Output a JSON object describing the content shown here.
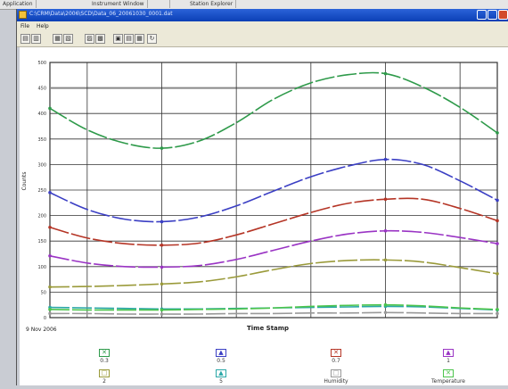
{
  "taskbar": {
    "items": [
      "Application",
      "Instrument Window",
      "",
      "Station Explorer"
    ]
  },
  "window": {
    "title": "C:\\CRM\\Data\\2006\\SCD\\Data_06_20061030_0001.dat",
    "menu": [
      "File",
      "Help"
    ]
  },
  "chart": {
    "xlabel": "Time Stamp",
    "ylabel": "Counts",
    "date_label": "9 Nov 2006",
    "legend": [
      {
        "label": "0.3",
        "color": "#2e9a4a",
        "icon": "x-mark"
      },
      {
        "label": "0.5",
        "color": "#3b3fc4",
        "icon": "triangle"
      },
      {
        "label": "0.7",
        "color": "#b53526",
        "icon": "x-mark"
      },
      {
        "label": "1",
        "color": "#9a34c4",
        "icon": "triangle"
      },
      {
        "label": "2",
        "color": "#9a9a3a",
        "icon": "square"
      },
      {
        "label": "5",
        "color": "#2aa7a7",
        "icon": "triangle"
      },
      {
        "label": "Humidity",
        "color": "#999999",
        "icon": "square"
      },
      {
        "label": "Temperature",
        "color": "#4cc44c",
        "icon": "x-mark"
      }
    ]
  },
  "chart_data": {
    "type": "line",
    "ylabel": "Counts",
    "xlabel": "Time Stamp",
    "ylim": [
      0,
      500
    ],
    "yticks": [
      0,
      50,
      100,
      150,
      200,
      250,
      300,
      350,
      400,
      450,
      500
    ],
    "x": [
      0,
      1,
      2,
      3,
      4,
      5,
      6,
      7,
      8,
      9,
      10,
      11,
      12
    ],
    "xlim": [
      0,
      12
    ],
    "grid": true,
    "series": [
      {
        "name": "0.3",
        "color": "#2e9a4a",
        "values": [
          410,
          368,
          342,
          332,
          346,
          382,
          428,
          460,
          476,
          478,
          452,
          412,
          362
        ]
      },
      {
        "name": "0.5",
        "color": "#3b3fc4",
        "values": [
          245,
          212,
          193,
          188,
          197,
          219,
          248,
          276,
          297,
          310,
          300,
          268,
          230
        ]
      },
      {
        "name": "0.7",
        "color": "#b53526",
        "values": [
          177,
          156,
          145,
          142,
          146,
          162,
          184,
          206,
          224,
          232,
          232,
          214,
          190
        ]
      },
      {
        "name": "1",
        "color": "#9a34c4",
        "values": [
          121,
          107,
          100,
          99,
          102,
          114,
          132,
          150,
          164,
          170,
          167,
          157,
          145
        ]
      },
      {
        "name": "2",
        "color": "#9a9a3a",
        "values": [
          60,
          61,
          63,
          66,
          70,
          80,
          94,
          106,
          112,
          113,
          109,
          98,
          86
        ]
      },
      {
        "name": "5",
        "color": "#2aa7a7",
        "values": [
          20,
          19,
          18,
          17,
          17,
          18,
          19,
          20,
          21,
          22,
          21,
          18,
          15
        ]
      },
      {
        "name": "Humidity",
        "color": "#999999",
        "values": [
          8,
          8,
          7,
          7,
          7,
          8,
          8,
          9,
          9,
          10,
          9,
          8,
          8
        ]
      },
      {
        "name": "Temperature",
        "color": "#4cc44c",
        "values": [
          16,
          15,
          15,
          15,
          16,
          17,
          19,
          22,
          24,
          25,
          23,
          19,
          16
        ]
      }
    ]
  }
}
